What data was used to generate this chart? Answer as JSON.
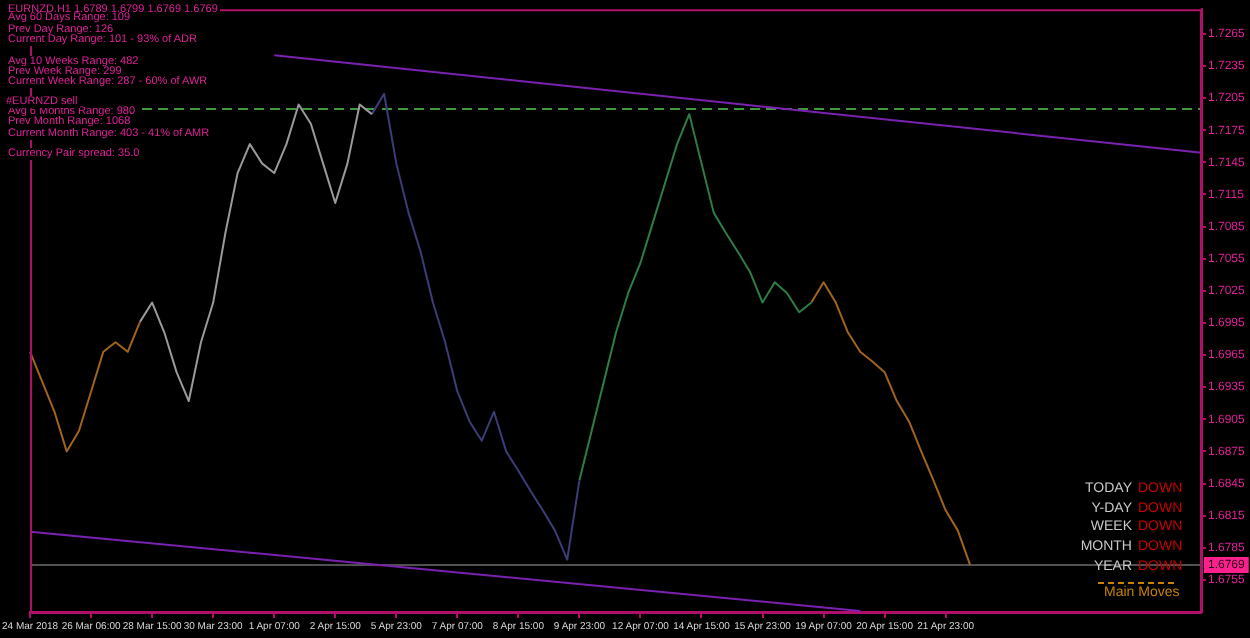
{
  "chart_data": {
    "type": "line",
    "title": "EURNZD,H1 1.6789 1.6799 1.6769 1.6769",
    "categories": [
      "24 Mar 2018",
      null,
      null,
      null,
      null,
      "26 Mar 06:00",
      null,
      null,
      null,
      null,
      "28 Mar 15:00",
      null,
      null,
      null,
      null,
      "30 Mar 23:00",
      null,
      null,
      null,
      null,
      "1 Apr 07:00",
      null,
      null,
      null,
      null,
      "2 Apr 15:00",
      null,
      null,
      null,
      null,
      "5 Apr 23:00",
      null,
      null,
      null,
      null,
      "7 Apr 07:00",
      null,
      null,
      null,
      null,
      "8 Apr 15:00",
      null,
      null,
      null,
      null,
      "9 Apr 23:00",
      null,
      null,
      null,
      null,
      "12 Apr 07:00",
      null,
      null,
      null,
      null,
      "14 Apr 15:00",
      null,
      null,
      null,
      null,
      "15 Apr 23:00",
      null,
      null,
      null,
      null,
      "19 Apr 07:00",
      null,
      null,
      null,
      null,
      "20 Apr 15:00",
      null,
      null,
      null,
      null,
      "21 Apr 23:00",
      null,
      null,
      null,
      null,
      null,
      null,
      null,
      null,
      null,
      null,
      null,
      null,
      null,
      null,
      null,
      null,
      null,
      null,
      null,
      null,
      null
    ],
    "series": [
      {
        "color": "#a0641e",
        "values": [
          1.6968,
          1.694,
          1.6912,
          1.6875,
          1.6894,
          1.6931,
          1.6968,
          1.6977,
          1.6968,
          1.6996,
          null,
          null,
          null,
          null,
          null,
          null,
          null,
          null,
          null,
          null,
          null,
          null,
          null,
          null,
          null,
          null,
          null,
          null,
          null,
          null,
          null,
          null,
          null,
          null,
          null,
          null,
          null,
          null,
          null,
          null,
          null,
          null,
          null,
          null,
          null,
          null,
          null,
          null,
          null,
          null,
          null,
          null,
          null,
          null,
          null,
          null,
          null,
          null,
          null,
          null,
          null,
          null,
          null,
          null,
          null,
          null,
          null,
          null,
          null,
          null,
          null,
          null,
          null,
          null,
          null,
          null,
          null,
          null,
          null,
          null,
          null,
          null,
          null,
          null,
          null,
          null,
          null,
          null,
          null,
          null,
          null,
          null,
          null,
          null,
          null,
          null,
          null
        ]
      },
      {
        "color": "#9a9a9a",
        "values": [
          null,
          null,
          null,
          null,
          null,
          null,
          null,
          null,
          null,
          1.6996,
          1.7014,
          1.6986,
          1.6949,
          1.6922,
          1.6977,
          1.7014,
          1.7079,
          1.7135,
          1.7162,
          1.7144,
          1.7135,
          1.7162,
          1.7199,
          1.7181,
          1.7144,
          1.7107,
          1.7144,
          1.7199,
          1.719,
          null,
          null,
          null,
          null,
          null,
          null,
          null,
          null,
          null,
          null,
          null,
          null,
          null,
          null,
          null,
          null,
          null,
          null,
          null,
          null,
          null,
          null,
          null,
          null,
          null,
          null,
          null,
          null,
          null,
          null,
          null,
          null,
          null,
          null,
          null,
          null,
          null,
          null,
          null,
          null,
          null,
          null,
          null,
          null,
          null,
          null,
          null,
          null,
          null,
          null,
          null,
          null,
          null,
          null,
          null,
          null,
          null,
          null,
          null,
          null,
          null,
          null,
          null,
          null,
          null,
          null,
          null,
          null
        ]
      },
      {
        "color": "#3c3c78",
        "values": [
          null,
          null,
          null,
          null,
          null,
          null,
          null,
          null,
          null,
          null,
          null,
          null,
          null,
          null,
          null,
          null,
          null,
          null,
          null,
          null,
          null,
          null,
          null,
          null,
          null,
          null,
          null,
          null,
          1.719,
          1.7209,
          1.7144,
          1.7098,
          1.7061,
          1.7014,
          1.6977,
          1.6931,
          1.6903,
          1.6885,
          1.6912,
          1.6875,
          1.6857,
          1.6838,
          1.682,
          1.6801,
          1.6774,
          1.6848,
          null,
          null,
          null,
          null,
          null,
          null,
          null,
          null,
          null,
          null,
          null,
          null,
          null,
          null,
          null,
          null,
          null,
          null,
          null,
          null,
          null,
          null,
          null,
          null,
          null,
          null,
          null,
          null,
          null,
          null,
          null,
          null,
          null,
          null,
          null,
          null,
          null,
          null,
          null,
          null,
          null,
          null,
          null,
          null,
          null,
          null,
          null,
          null,
          null,
          null,
          null
        ]
      },
      {
        "color": "#2e7d46",
        "values": [
          null,
          null,
          null,
          null,
          null,
          null,
          null,
          null,
          null,
          null,
          null,
          null,
          null,
          null,
          null,
          null,
          null,
          null,
          null,
          null,
          null,
          null,
          null,
          null,
          null,
          null,
          null,
          null,
          null,
          null,
          null,
          null,
          null,
          null,
          null,
          null,
          null,
          null,
          null,
          null,
          null,
          null,
          null,
          null,
          null,
          1.6848,
          1.6894,
          1.694,
          1.6986,
          1.7023,
          1.7051,
          1.7088,
          1.7125,
          1.7162,
          1.719,
          1.7144,
          1.7098,
          1.7079,
          1.7061,
          1.7042,
          1.7014,
          1.7033,
          1.7023,
          1.7005,
          1.7014,
          null,
          null,
          null,
          null,
          null,
          null,
          null,
          null,
          null,
          null,
          null,
          null,
          null,
          null,
          null,
          null,
          null,
          null,
          null,
          null,
          null,
          null,
          null,
          null,
          null,
          null,
          null,
          null,
          null,
          null,
          null,
          null
        ]
      },
      {
        "color": "#a0641e",
        "values": [
          null,
          null,
          null,
          null,
          null,
          null,
          null,
          null,
          null,
          null,
          null,
          null,
          null,
          null,
          null,
          null,
          null,
          null,
          null,
          null,
          null,
          null,
          null,
          null,
          null,
          null,
          null,
          null,
          null,
          null,
          null,
          null,
          null,
          null,
          null,
          null,
          null,
          null,
          null,
          null,
          null,
          null,
          null,
          null,
          null,
          null,
          null,
          null,
          null,
          null,
          null,
          null,
          null,
          null,
          null,
          null,
          null,
          null,
          null,
          null,
          null,
          null,
          null,
          null,
          1.7014,
          1.7033,
          1.7014,
          1.6986,
          1.6968,
          1.6959,
          1.6949,
          1.6922,
          1.6903,
          1.6875,
          1.6848,
          1.682,
          1.6801,
          1.6769,
          null,
          null,
          null,
          null,
          null,
          null,
          null,
          null,
          null,
          null,
          null,
          null,
          null,
          null,
          null,
          null,
          null,
          null,
          null
        ]
      },
      {
        "color": "#7a22b0",
        "values": [
          null,
          null,
          null,
          null,
          null,
          null,
          null,
          null,
          null,
          null,
          null,
          null,
          null,
          null,
          null,
          null,
          null,
          null,
          null,
          null,
          1.7245,
          null,
          null,
          null,
          null,
          null,
          null,
          null,
          null,
          null,
          null,
          null,
          null,
          null,
          null,
          null,
          null,
          null,
          null,
          null,
          null,
          null,
          null,
          null,
          null,
          null,
          null,
          null,
          null,
          null,
          null,
          null,
          null,
          null,
          null,
          null,
          null,
          null,
          null,
          null,
          null,
          null,
          null,
          null,
          null,
          null,
          null,
          null,
          null,
          null,
          null,
          null,
          null,
          null,
          null,
          null,
          null,
          null,
          null,
          null,
          null,
          null,
          null,
          null,
          null,
          null,
          null,
          null,
          null,
          null,
          null,
          null,
          null,
          null,
          null,
          null,
          1.7154
        ]
      },
      {
        "color": "#7a22b0",
        "values": [
          1.68,
          null,
          null,
          null,
          null,
          null,
          null,
          null,
          null,
          null,
          null,
          null,
          null,
          null,
          null,
          null,
          null,
          null,
          null,
          null,
          null,
          null,
          null,
          null,
          null,
          null,
          null,
          null,
          null,
          null,
          null,
          null,
          null,
          null,
          null,
          null,
          null,
          null,
          null,
          null,
          null,
          null,
          null,
          null,
          null,
          null,
          null,
          null,
          null,
          null,
          null,
          null,
          null,
          null,
          null,
          null,
          null,
          null,
          null,
          null,
          null,
          null,
          null,
          null,
          null,
          null,
          null,
          null,
          1.6726,
          null,
          null,
          null,
          null,
          null,
          null,
          null,
          null,
          null,
          null,
          null,
          null,
          null,
          null,
          null,
          null,
          null,
          null,
          null,
          null,
          null,
          null,
          null,
          null,
          null,
          null,
          null,
          null
        ]
      }
    ],
    "ylim": [
      1.6725,
      1.7288
    ],
    "yticks": [
      1.6755,
      1.6785,
      1.6815,
      1.6845,
      1.6875,
      1.6905,
      1.6935,
      1.6965,
      1.6995,
      1.7025,
      1.7055,
      1.7085,
      1.7115,
      1.7145,
      1.7175,
      1.7205,
      1.7235,
      1.7265
    ],
    "marker": "none",
    "ref_lines": [
      {
        "axis": "y",
        "value": 1.7196,
        "label": "#EURNZD sell",
        "color": "#3c9c3c",
        "line_style": "dashed"
      },
      {
        "axis": "y",
        "value": 1.6769,
        "color": "#505050",
        "line_style": "solid"
      }
    ],
    "annotations": [
      "Avg 60 Days Range: 109",
      "Prev Day Range: 126",
      "Current Day Range: 101 - 93% of ADR",
      "Avg 10 Weeks Range: 482",
      "Prev Week Range: 299",
      "Current Week Range: 287 - 60% of AWR",
      "Avg 6 Months Range: 980",
      "Prev Month Range: 1068",
      "Current Month Range: 403 - 41% of AMR",
      "Currency Pair spread: 35.0",
      "TODAY",
      "DOWN",
      "Y-DAY",
      "DOWN",
      "WEEK",
      "DOWN",
      "MONTH",
      "DOWN",
      "YEAR",
      "DOWN",
      "Main Moves",
      {
        "text": "1.6769",
        "y": 1.6769
      }
    ]
  }
}
